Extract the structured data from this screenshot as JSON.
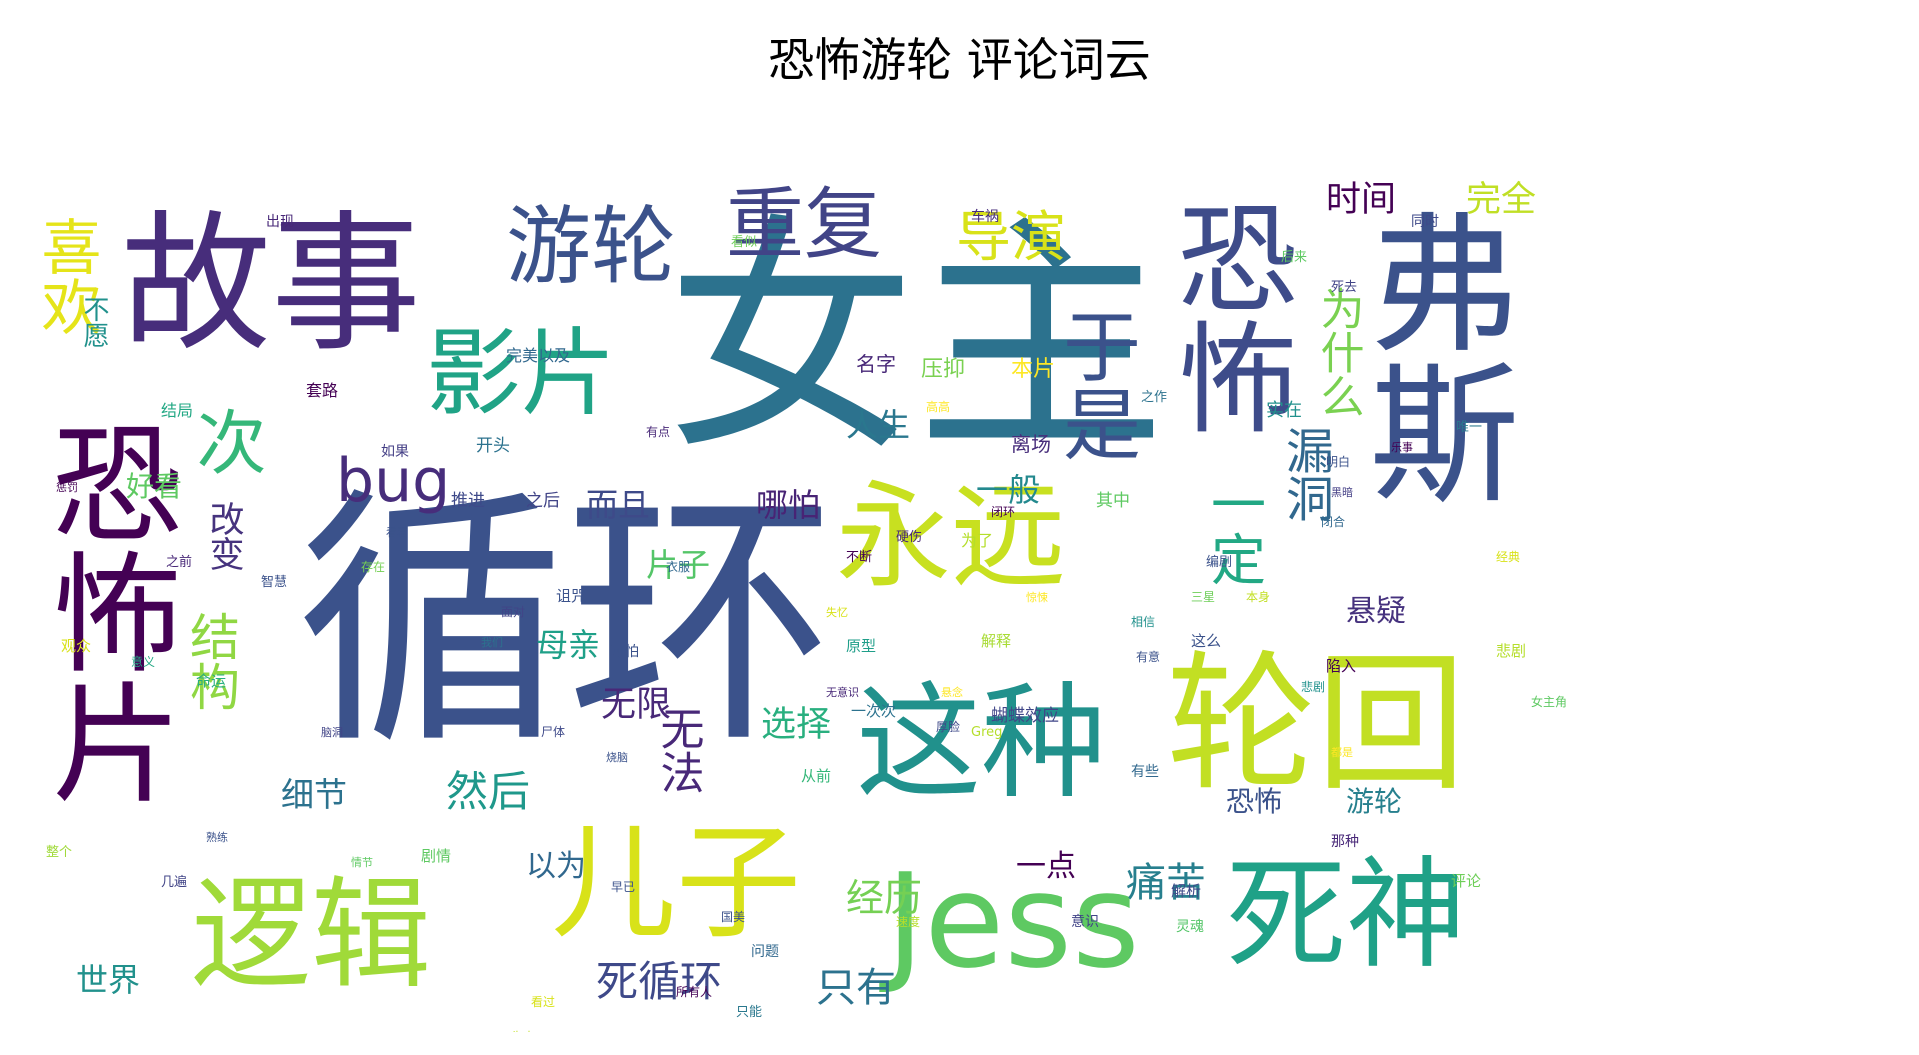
{
  "title": "恐怖游轮 评论词云",
  "palette": [
    "#440154",
    "#472c7a",
    "#3b518b",
    "#2c718e",
    "#21908d",
    "#27ad81",
    "#5cc863",
    "#aadc32",
    "#d5e21a"
  ],
  "words": [
    {
      "text": "循环",
      "weight": 100,
      "color": "#3b528b"
    },
    {
      "text": "女主",
      "weight": 96,
      "color": "#2c728e"
    },
    {
      "text": "故事",
      "weight": 72,
      "color": "#472d7b"
    },
    {
      "text": "弗斯",
      "weight": 70,
      "color": "#3b528b"
    },
    {
      "text": "恐怖片",
      "weight": 68,
      "color": "#440154"
    },
    {
      "text": "轮回",
      "weight": 64,
      "color": "#c2df23"
    },
    {
      "text": "恐怖",
      "weight": 62,
      "color": "#3e4c8a"
    },
    {
      "text": "Jess",
      "weight": 60,
      "color": "#5ec962"
    },
    {
      "text": "这种",
      "weight": 58,
      "color": "#21918c"
    },
    {
      "text": "死神",
      "weight": 58,
      "color": "#1fa187"
    },
    {
      "text": "逻辑",
      "weight": 56,
      "color": "#a0da39"
    },
    {
      "text": "儿子",
      "weight": 56,
      "color": "#d8e219"
    },
    {
      "text": "永远",
      "weight": 54,
      "color": "#c8e020"
    },
    {
      "text": "影片",
      "weight": 46,
      "color": "#20a386"
    },
    {
      "text": "游轮",
      "weight": 42,
      "color": "#3b528b"
    },
    {
      "text": "重复",
      "weight": 40,
      "color": "#414487"
    },
    {
      "text": "于是",
      "weight": 38,
      "color": "#3b528b"
    },
    {
      "text": "次",
      "weight": 36,
      "color": "#35b779"
    },
    {
      "text": "喜欢",
      "weight": 34,
      "color": "#e5e419"
    },
    {
      "text": "bug",
      "weight": 33,
      "color": "#472d7b"
    },
    {
      "text": "导演",
      "weight": 32,
      "color": "#d8e219"
    },
    {
      "text": "一定",
      "weight": 32,
      "color": "#22a884"
    },
    {
      "text": "结构",
      "weight": 30,
      "color": "#90d743"
    },
    {
      "text": "漏洞",
      "weight": 28,
      "color": "#31688e"
    },
    {
      "text": "为什么",
      "weight": 27,
      "color": "#7ad151"
    },
    {
      "text": "无法",
      "weight": 26,
      "color": "#482878"
    },
    {
      "text": "然后",
      "weight": 26,
      "color": "#1f988b"
    },
    {
      "text": "死循环",
      "weight": 25,
      "color": "#3e4989"
    },
    {
      "text": "只有",
      "weight": 24,
      "color": "#2c728e"
    },
    {
      "text": "痛苦",
      "weight": 24,
      "color": "#277f8e"
    },
    {
      "text": "经历",
      "weight": 23,
      "color": "#75d054"
    },
    {
      "text": "时间",
      "weight": 22,
      "color": "#440154"
    },
    {
      "text": "完全",
      "weight": 22,
      "color": "#c0df25"
    },
    {
      "text": "无限",
      "weight": 22,
      "color": "#482878"
    },
    {
      "text": "选择",
      "weight": 22,
      "color": "#29af7f"
    },
    {
      "text": "改变",
      "weight": 22,
      "color": "#46337e"
    },
    {
      "text": "细节",
      "weight": 21,
      "color": "#2c728e"
    },
    {
      "text": "世界",
      "weight": 20,
      "color": "#21918c"
    },
    {
      "text": "人生",
      "weight": 20,
      "color": "#2a778e"
    },
    {
      "text": "哪怕",
      "weight": 20,
      "color": "#482475"
    },
    {
      "text": "片子",
      "weight": 20,
      "color": "#54c568"
    },
    {
      "text": "母亲",
      "weight": 20,
      "color": "#1fa088"
    },
    {
      "text": "而且",
      "weight": 20,
      "color": "#3e4a89"
    },
    {
      "text": "一般",
      "weight": 20,
      "color": "#23898e"
    },
    {
      "text": "悬疑",
      "weight": 19,
      "color": "#46327e"
    },
    {
      "text": "以为",
      "weight": 19,
      "color": "#31688e"
    },
    {
      "text": "一点",
      "weight": 19,
      "color": "#440154"
    },
    {
      "text": "恐怖",
      "weight": 18,
      "color": "#3b528b"
    },
    {
      "text": "游轮",
      "weight": 18,
      "color": "#27808e"
    },
    {
      "text": "好看",
      "weight": 17,
      "color": "#5ec962"
    },
    {
      "text": "不愿",
      "weight": 16,
      "color": "#21918c"
    },
    {
      "text": "完美以及",
      "weight": 12,
      "color": "#31688e"
    },
    {
      "text": "出现",
      "weight": 12,
      "color": "#482878"
    },
    {
      "text": "车祸",
      "weight": 12,
      "color": "#472d7b"
    },
    {
      "text": "同时",
      "weight": 12,
      "color": "#3e4989"
    },
    {
      "text": "压抑",
      "weight": 13,
      "color": "#7ad151"
    },
    {
      "text": "本片",
      "weight": 13,
      "color": "#fde725"
    },
    {
      "text": "名字",
      "weight": 13,
      "color": "#482878"
    },
    {
      "text": "离场",
      "weight": 13,
      "color": "#472d7b"
    },
    {
      "text": "实在",
      "weight": 12,
      "color": "#21918c"
    },
    {
      "text": "开头",
      "weight": 12,
      "color": "#2c728e"
    },
    {
      "text": "推进",
      "weight": 12,
      "color": "#3e4989"
    },
    {
      "text": "之后",
      "weight": 12,
      "color": "#414487"
    },
    {
      "text": "套路",
      "weight": 12,
      "color": "#440154"
    },
    {
      "text": "结局",
      "weight": 12,
      "color": "#22a884"
    },
    {
      "text": "如果",
      "weight": 11,
      "color": "#433e85"
    },
    {
      "text": "其中",
      "weight": 12,
      "color": "#5ec962"
    },
    {
      "text": "为了",
      "weight": 12,
      "color": "#b5de2b"
    },
    {
      "text": "解释",
      "weight": 11,
      "color": "#a8db34"
    },
    {
      "text": "诅咒",
      "weight": 11,
      "color": "#3b528b"
    },
    {
      "text": "蝴蝶效应",
      "weight": 12,
      "color": "#404688"
    },
    {
      "text": "一次次",
      "weight": 11,
      "color": "#2c728e"
    },
    {
      "text": "原型",
      "weight": 11,
      "color": "#1f9e89"
    },
    {
      "text": "这么",
      "weight": 11,
      "color": "#3b528b"
    },
    {
      "text": "陷入",
      "weight": 11,
      "color": "#440154"
    },
    {
      "text": "悲剧",
      "weight": 11,
      "color": "#b5de2b"
    },
    {
      "text": "观众",
      "weight": 11,
      "color": "#d8e219"
    },
    {
      "text": "命运",
      "weight": 11,
      "color": "#27ad81"
    },
    {
      "text": "可怕",
      "weight": 10,
      "color": "#3b528b"
    },
    {
      "text": "从前",
      "weight": 11,
      "color": "#35b779"
    },
    {
      "text": "有些",
      "weight": 10,
      "color": "#31688e"
    },
    {
      "text": "剧情",
      "weight": 12,
      "color": "#5ec962"
    },
    {
      "text": "那种",
      "weight": 10,
      "color": "#482878"
    },
    {
      "text": "评论",
      "weight": 11,
      "color": "#6ece58"
    },
    {
      "text": "解析",
      "weight": 11,
      "color": "#3e4a89"
    },
    {
      "text": "灵魂",
      "weight": 10,
      "color": "#54c568"
    },
    {
      "text": "意识",
      "weight": 10,
      "color": "#414487"
    },
    {
      "text": "问题",
      "weight": 10,
      "color": "#31688e"
    },
    {
      "text": "只能",
      "weight": 10,
      "color": "#2a788e"
    },
    {
      "text": "再说",
      "weight": 10,
      "color": "#2c728e"
    },
    {
      "text": "死亡",
      "weight": 10,
      "color": "#21918c"
    },
    {
      "text": "阴影",
      "weight": 10,
      "color": "#7ad151"
    },
    {
      "text": "故事",
      "weight": 10,
      "color": "#3e4a89"
    },
    {
      "text": "整个",
      "weight": 10,
      "color": "#a0da39"
    },
    {
      "text": "几遍",
      "weight": 10,
      "color": "#414487"
    },
    {
      "text": "之前",
      "weight": 10,
      "color": "#482878"
    },
    {
      "text": "智慧",
      "weight": 10,
      "color": "#3b528b"
    },
    {
      "text": "看似",
      "weight": 10,
      "color": "#6ece58"
    },
    {
      "text": "后来",
      "weight": 10,
      "color": "#5ec962"
    },
    {
      "text": "死去",
      "weight": 10,
      "color": "#414487"
    },
    {
      "text": "之作",
      "weight": 10,
      "color": "#2c728e"
    },
    {
      "text": "唯一",
      "weight": 10,
      "color": "#2a788e"
    },
    {
      "text": "编剧",
      "weight": 10,
      "color": "#3b528b"
    },
    {
      "text": "三星",
      "weight": 10,
      "color": "#6ece58"
    },
    {
      "text": "本身",
      "weight": 10,
      "color": "#c2df23"
    },
    {
      "text": "经典",
      "weight": 10,
      "color": "#d8e219"
    },
    {
      "text": "有意",
      "weight": 10,
      "color": "#3b528b"
    },
    {
      "text": "Greg",
      "weight": 10,
      "color": "#b5de2b"
    },
    {
      "text": "存在",
      "weight": 10,
      "color": "#75d054"
    },
    {
      "text": "衣服",
      "weight": 10,
      "color": "#31688e"
    },
    {
      "text": "硬伤",
      "weight": 10,
      "color": "#482878"
    },
    {
      "text": "不断",
      "weight": 10,
      "color": "#440154"
    },
    {
      "text": "厚脸",
      "weight": 10,
      "color": "#3e4989"
    },
    {
      "text": "闭合",
      "weight": 10,
      "color": "#31688e"
    },
    {
      "text": "闭环",
      "weight": 10,
      "color": "#440154"
    },
    {
      "text": "面对",
      "weight": 10,
      "color": "#414487"
    },
    {
      "text": "速度",
      "weight": 10,
      "color": "#b5de2b"
    },
    {
      "text": "国美",
      "weight": 10,
      "color": "#3b528b"
    },
    {
      "text": "所有人",
      "weight": 10,
      "color": "#440154"
    },
    {
      "text": "早已",
      "weight": 10,
      "color": "#3b528b"
    },
    {
      "text": "尸体",
      "weight": 10,
      "color": "#3e4989"
    },
    {
      "text": "意义",
      "weight": 10,
      "color": "#22a884"
    },
    {
      "text": "失去",
      "weight": 10,
      "color": "#c2df23"
    },
    {
      "text": "看过",
      "weight": 10,
      "color": "#d8e219"
    },
    {
      "text": "悲剧",
      "weight": 10,
      "color": "#21918c"
    },
    {
      "text": "相信",
      "weight": 10,
      "color": "#21918c"
    },
    {
      "text": "高高",
      "weight": 10,
      "color": "#fde725"
    },
    {
      "text": "有点",
      "weight": 10,
      "color": "#482878"
    },
    {
      "text": "明白",
      "weight": 10,
      "color": "#3b528b"
    },
    {
      "text": "乐事",
      "weight": 10,
      "color": "#440154"
    },
    {
      "text": "女主角",
      "weight": 10,
      "color": "#5ec962"
    },
    {
      "text": "看看",
      "weight": 9,
      "color": "#3b528b"
    },
    {
      "text": "黑暗",
      "weight": 9,
      "color": "#433e85"
    },
    {
      "text": "我们",
      "weight": 9,
      "color": "#2c728e"
    },
    {
      "text": "失忆",
      "weight": 9,
      "color": "#d8e219"
    },
    {
      "text": "惊悚",
      "weight": 9,
      "color": "#fde725"
    },
    {
      "text": "烧脑",
      "weight": 9,
      "color": "#3b528b"
    },
    {
      "text": "悬念",
      "weight": 9,
      "color": "#fde725"
    },
    {
      "text": "都是",
      "weight": 9,
      "color": "#fde725"
    },
    {
      "text": "惩罚",
      "weight": 9,
      "color": "#440154"
    },
    {
      "text": "无意识",
      "weight": 9,
      "color": "#482878"
    },
    {
      "text": "熟练",
      "weight": 9,
      "color": "#3b528b"
    },
    {
      "text": "情节",
      "weight": 9,
      "color": "#5ec962"
    },
    {
      "text": "脑洞",
      "weight": 9,
      "color": "#414487"
    }
  ]
}
